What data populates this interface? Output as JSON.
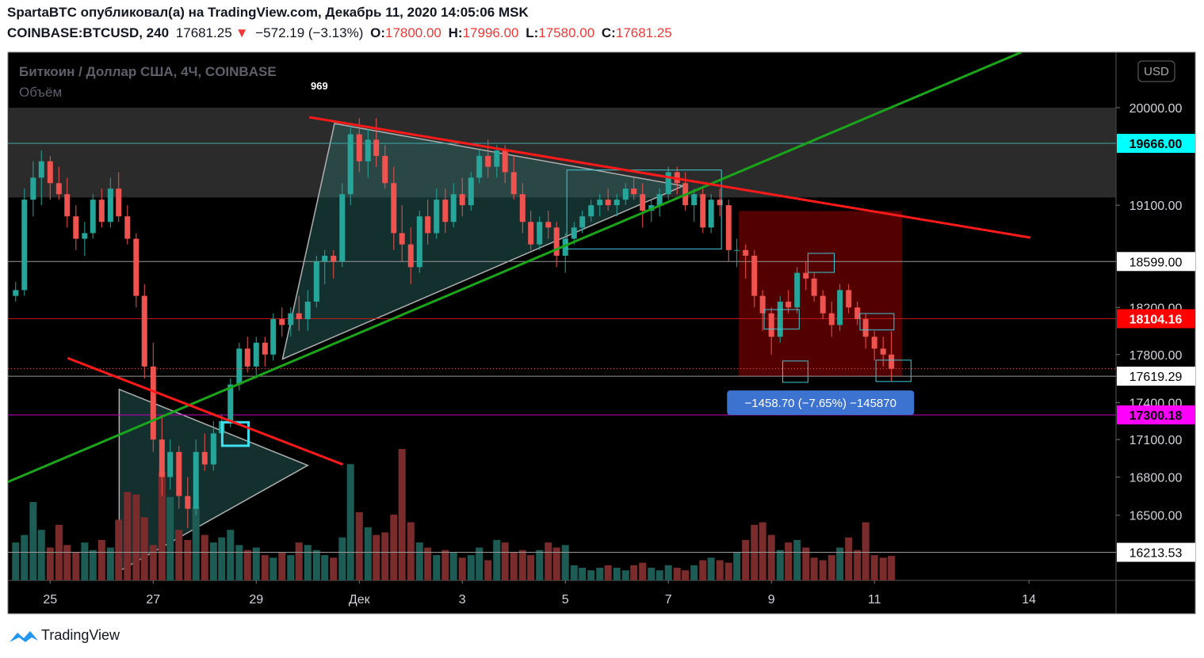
{
  "header": {
    "line1": "SpartaBTC опубликовал(а) на TradingView.com, Декабрь 11, 2020 14:05:06 MSK",
    "symbol": "COINBASE:BTCUSD, 240",
    "price": "17681.25",
    "arrow": "▼",
    "change": "−572.19 (−3.13%)",
    "o_label": "O:",
    "o": "17800.00",
    "h_label": "H:",
    "h": "17996.00",
    "l_label": "L:",
    "l": "17580.00",
    "c_label": "C:",
    "c": "17681.25"
  },
  "footer": "TradingView",
  "chart_data": {
    "type": "candlestick",
    "title": "Биткоин / Доллар США, 4Ч, COINBASE",
    "volume_title": "Объём",
    "volume_value": "969",
    "currency": "USD",
    "log_scale": true,
    "grid": false,
    "ylim": [
      16000,
      20530
    ],
    "xlim": [
      24.18,
      45.69
    ],
    "volume_ylim": [
      0,
      20900
    ],
    "up_color": "#26a69a",
    "down_color": "#ef5350",
    "volume_up_color": "#1d5c55",
    "volume_down_color": "#7a2b2b",
    "yticks": [
      {
        "value": 16500,
        "label": "16500.00"
      },
      {
        "value": 16800,
        "label": "16800.00"
      },
      {
        "value": 17100,
        "label": "17100.00"
      },
      {
        "value": 17400,
        "label": "17400.00"
      },
      {
        "value": 17800,
        "label": "17800.00"
      },
      {
        "value": 18200,
        "label": "18200.00"
      },
      {
        "value": 19100,
        "label": "19100.00"
      },
      {
        "value": 20000,
        "label": "20000.00"
      }
    ],
    "xticks": [
      25,
      27,
      29,
      {
        "value": 31,
        "label": "Дек"
      },
      {
        "value": 33,
        "label": "3"
      },
      {
        "value": 35,
        "label": "5"
      },
      {
        "value": 37,
        "label": "7"
      },
      {
        "value": 39,
        "label": "9"
      },
      {
        "value": 41,
        "label": "11"
      },
      {
        "value": 44,
        "label": "14"
      }
    ],
    "x": [
      24.33,
      24.5,
      24.67,
      24.83,
      25,
      25.17,
      25.33,
      25.5,
      25.67,
      25.83,
      26,
      26.17,
      26.33,
      26.5,
      26.67,
      26.83,
      27,
      27.17,
      27.33,
      27.5,
      27.67,
      27.83,
      28,
      28.17,
      28.33,
      28.5,
      28.67,
      28.83,
      29,
      29.17,
      29.33,
      29.5,
      29.67,
      29.83,
      30,
      30.17,
      30.33,
      30.5,
      30.67,
      30.83,
      31,
      31.17,
      31.33,
      31.5,
      31.67,
      31.83,
      32,
      32.17,
      32.33,
      32.5,
      32.67,
      32.83,
      33,
      33.17,
      33.33,
      33.5,
      33.67,
      33.83,
      34,
      34.17,
      34.33,
      34.5,
      34.67,
      34.83,
      35,
      35.17,
      35.33,
      35.5,
      35.67,
      35.83,
      36,
      36.17,
      36.33,
      36.5,
      36.67,
      36.83,
      37,
      37.17,
      37.33,
      37.5,
      37.67,
      37.83,
      38,
      38.17,
      38.33,
      38.5,
      38.67,
      38.83,
      39,
      39.17,
      39.33,
      39.5,
      39.67,
      39.83,
      40,
      40.17,
      40.33,
      40.5,
      40.67,
      40.83,
      41,
      41.17,
      41.33
    ],
    "candles": [
      [
        18300,
        18420,
        18250,
        18350
      ],
      [
        18350,
        19250,
        18300,
        19150
      ],
      [
        19150,
        19500,
        19000,
        19350
      ],
      [
        19350,
        19600,
        19100,
        19500
      ],
      [
        19500,
        19550,
        19150,
        19300
      ],
      [
        19300,
        19450,
        19150,
        19200
      ],
      [
        19200,
        19350,
        18900,
        19000
      ],
      [
        19000,
        19100,
        18700,
        18800
      ],
      [
        18800,
        18950,
        18650,
        18850
      ],
      [
        18850,
        19200,
        18800,
        19150
      ],
      [
        19150,
        19250,
        18900,
        18950
      ],
      [
        18950,
        19350,
        18900,
        19250
      ],
      [
        19250,
        19400,
        18950,
        19000
      ],
      [
        19000,
        19100,
        18750,
        18800
      ],
      [
        18800,
        18850,
        18200,
        18300
      ],
      [
        18300,
        18400,
        17600,
        17700
      ],
      [
        17700,
        17900,
        17000,
        17100
      ],
      [
        17100,
        17300,
        16650,
        16800
      ],
      [
        16800,
        17100,
        16700,
        17000
      ],
      [
        17000,
        17050,
        16550,
        16650
      ],
      [
        16650,
        16800,
        16400,
        16550
      ],
      [
        16550,
        17100,
        16500,
        17000
      ],
      [
        17000,
        17150,
        16850,
        16900
      ],
      [
        16900,
        17250,
        16850,
        17150
      ],
      [
        17150,
        17300,
        17050,
        17250
      ],
      [
        17250,
        17600,
        17200,
        17550
      ],
      [
        17550,
        17900,
        17500,
        17850
      ],
      [
        17850,
        17950,
        17650,
        17700
      ],
      [
        17700,
        17950,
        17600,
        17900
      ],
      [
        17900,
        17950,
        17700,
        17800
      ],
      [
        17800,
        18150,
        17750,
        18100
      ],
      [
        18100,
        18200,
        17950,
        18050
      ],
      [
        18050,
        18200,
        17950,
        18150
      ],
      [
        18150,
        18300,
        18000,
        18100
      ],
      [
        18100,
        18350,
        18000,
        18250
      ],
      [
        18250,
        18650,
        18200,
        18600
      ],
      [
        18600,
        18700,
        18400,
        18650
      ],
      [
        18650,
        18700,
        18450,
        18600
      ],
      [
        18600,
        19300,
        18550,
        19200
      ],
      [
        19200,
        19850,
        19100,
        19750
      ],
      [
        19750,
        19900,
        19400,
        19500
      ],
      [
        19500,
        19800,
        19350,
        19700
      ],
      [
        19700,
        19900,
        19450,
        19550
      ],
      [
        19550,
        19650,
        19250,
        19300
      ],
      [
        19300,
        19450,
        18700,
        18850
      ],
      [
        18850,
        19100,
        18600,
        18750
      ],
      [
        18750,
        18900,
        18400,
        18550
      ],
      [
        18550,
        19050,
        18500,
        19000
      ],
      [
        19000,
        19150,
        18750,
        18850
      ],
      [
        18850,
        19250,
        18800,
        19150
      ],
      [
        19150,
        19250,
        18850,
        18950
      ],
      [
        18950,
        19300,
        18900,
        19200
      ],
      [
        19200,
        19350,
        19000,
        19100
      ],
      [
        19100,
        19400,
        19050,
        19350
      ],
      [
        19350,
        19600,
        19300,
        19550
      ],
      [
        19550,
        19700,
        19350,
        19450
      ],
      [
        19450,
        19650,
        19350,
        19600
      ],
      [
        19600,
        19650,
        19300,
        19400
      ],
      [
        19400,
        19550,
        19150,
        19200
      ],
      [
        19200,
        19300,
        18850,
        18950
      ],
      [
        18950,
        19050,
        18700,
        18750
      ],
      [
        18750,
        19000,
        18700,
        18950
      ],
      [
        18950,
        19050,
        18800,
        18900
      ],
      [
        18900,
        18950,
        18550,
        18650
      ],
      [
        18650,
        18850,
        18500,
        18800
      ],
      [
        18800,
        18950,
        18750,
        18900
      ],
      [
        18900,
        19050,
        18850,
        19000
      ],
      [
        19000,
        19150,
        18950,
        19100
      ],
      [
        19100,
        19200,
        19000,
        19150
      ],
      [
        19150,
        19250,
        19050,
        19100
      ],
      [
        19100,
        19200,
        19000,
        19150
      ],
      [
        19150,
        19300,
        19100,
        19250
      ],
      [
        19250,
        19350,
        19150,
        19200
      ],
      [
        19200,
        19300,
        18900,
        19050
      ],
      [
        19050,
        19150,
        18950,
        19100
      ],
      [
        19100,
        19250,
        19000,
        19200
      ],
      [
        19200,
        19450,
        19150,
        19400
      ],
      [
        19400,
        19450,
        19200,
        19300
      ],
      [
        19300,
        19400,
        19050,
        19100
      ],
      [
        19100,
        19250,
        18950,
        19200
      ],
      [
        19200,
        19250,
        18850,
        18900
      ],
      [
        18900,
        19200,
        18850,
        19150
      ],
      [
        19150,
        19250,
        19000,
        19100
      ],
      [
        19100,
        19150,
        18600,
        18700
      ],
      [
        18700,
        18800,
        18550,
        18700
      ],
      [
        18700,
        18750,
        18450,
        18650
      ],
      [
        18650,
        18700,
        18200,
        18300
      ],
      [
        18300,
        18350,
        18000,
        18150
      ],
      [
        18150,
        18200,
        17800,
        17950
      ],
      [
        17950,
        18300,
        17900,
        18250
      ],
      [
        18250,
        18350,
        18150,
        18200
      ],
      [
        18200,
        18550,
        18150,
        18500
      ],
      [
        18500,
        18600,
        18350,
        18450
      ],
      [
        18450,
        18500,
        18250,
        18300
      ],
      [
        18300,
        18350,
        18100,
        18150
      ],
      [
        18150,
        18250,
        17950,
        18050
      ],
      [
        18050,
        18400,
        18000,
        18350
      ],
      [
        18350,
        18400,
        18150,
        18200
      ],
      [
        18200,
        18250,
        18050,
        18100
      ],
      [
        18100,
        18150,
        17850,
        17950
      ],
      [
        17950,
        18000,
        17750,
        17850
      ],
      [
        17850,
        17950,
        17700,
        17800
      ],
      [
        17800,
        17996,
        17580,
        17681.25
      ]
    ],
    "volume": [
      1500,
      1800,
      3100,
      2000,
      1300,
      2200,
      1400,
      1100,
      1500,
      1200,
      1600,
      1300,
      2400,
      3500,
      3400,
      2500,
      1400,
      4300,
      3300,
      2000,
      1600,
      2900,
      1800,
      1500,
      1700,
      2000,
      1400,
      1200,
      1300,
      1000,
      900,
      1100,
      1000,
      1500,
      1400,
      1200,
      1000,
      900,
      1700,
      4600,
      2700,
      2100,
      1800,
      1900,
      2600,
      5200,
      2300,
      1500,
      1300,
      1000,
      1200,
      1100,
      900,
      1000,
      1300,
      800,
      1600,
      1500,
      1100,
      1200,
      1000,
      1200,
      1500,
      1300,
      1400,
      600,
      500,
      400,
      500,
      600,
      500,
      400,
      600,
      700,
      500,
      400,
      600,
      500,
      400,
      600,
      800,
      900,
      800,
      700,
      1100,
      1600,
      2200,
      2300,
      1800,
      1200,
      1500,
      1600,
      1300,
      900,
      800,
      1000,
      1300,
      1700,
      1200,
      2300,
      1000,
      900,
      969
    ],
    "price_lines": [
      {
        "value": 19666,
        "label": "19666.00",
        "color": "#00ffff",
        "line_color": "#3fa9a9",
        "text_color": "#000000"
      },
      {
        "value": 18599,
        "label": "18599.00",
        "color": "#ffffff",
        "line_color": "#9a9a9a",
        "text_color": "#000000"
      },
      {
        "value": 18104.16,
        "label": "18104.16",
        "color": "#ff0000",
        "line_color": "#c41a1a",
        "text_color": "#ffffff"
      },
      {
        "value": 17619.29,
        "label": "17619.29",
        "color": "#ffffff",
        "line_color": "#9a9a9a",
        "text_color": "#000000"
      },
      {
        "value": 17300.18,
        "label": "17300.18",
        "color": "#ff00ff",
        "line_color": "#c000c0",
        "text_color": "#000000"
      },
      {
        "value": 16213.53,
        "label": "16213.53",
        "color": "#ffffff",
        "line_color": "#9a9a9a",
        "text_color": "#000000"
      }
    ],
    "zone": [
      19170,
      20000
    ],
    "trend_lines": [
      {
        "color": "#1aa51a",
        "x": [
          24.18,
          43.85
        ],
        "y": [
          16761,
          20530
        ]
      },
      {
        "color": "#ff1a1a",
        "x": [
          30.03,
          44.03
        ],
        "y": [
          19910,
          18810
        ]
      },
      {
        "color": "#ff1a1a",
        "x": [
          25.34,
          30.68
        ],
        "y": [
          17770,
          16900
        ]
      }
    ],
    "triangles": [
      {
        "x": [
          29.51,
          30.52,
          37.29
        ],
        "y": [
          17762,
          19851,
          19275
        ]
      },
      {
        "x": [
          26.34,
          26.34,
          30.0
        ],
        "y": [
          16070,
          17510,
          16893
        ]
      }
    ],
    "boxes": [
      {
        "x": [
          35.03,
          38.03
        ],
        "y": [
          19420,
          18710
        ],
        "color": "#3fc9d6",
        "width": 1
      },
      {
        "x": [
          28.34,
          28.85
        ],
        "y": [
          17240,
          17050
        ],
        "color": "#3fe0f0",
        "width": 3
      },
      {
        "x": [
          38.86,
          39.54
        ],
        "y": [
          18182,
          18015
        ],
        "color": "#3fc9d6",
        "width": 1
      },
      {
        "x": [
          39.71,
          40.22
        ],
        "y": [
          18671,
          18504
        ],
        "color": "#3fc9d6",
        "width": 1
      },
      {
        "x": [
          40.72,
          41.38
        ],
        "y": [
          18148,
          18008
        ],
        "color": "#3fc9d6",
        "width": 1
      },
      {
        "x": [
          39.22,
          39.71
        ],
        "y": [
          17746,
          17568
        ],
        "color": "#3fc9d6",
        "width": 1
      },
      {
        "x": [
          41.03,
          41.71
        ],
        "y": [
          17753,
          17575
        ],
        "color": "#3fc9d6",
        "width": 1
      }
    ],
    "range_box": {
      "x": [
        38.37,
        41.54
      ],
      "y": [
        19048,
        17619
      ],
      "label": "−1458.70 (−7.65%) −145870"
    }
  }
}
